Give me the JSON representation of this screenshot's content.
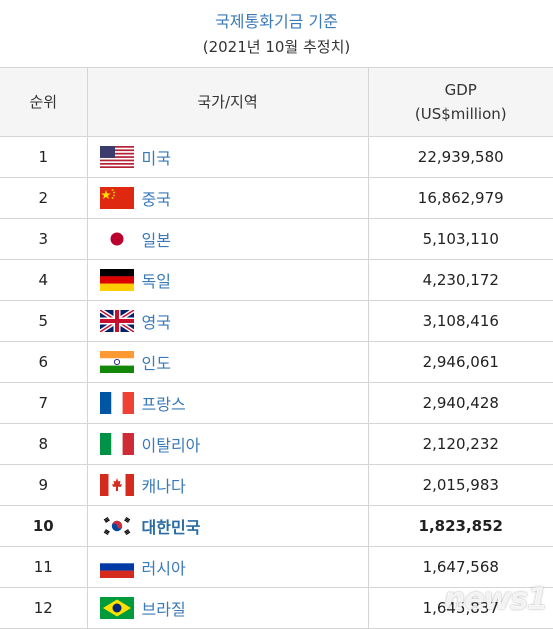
{
  "caption": {
    "source": "국제통화기금 기준",
    "subtitle": "(2021년 10월 추정치)"
  },
  "table": {
    "headers": {
      "rank": "순위",
      "country": "국가/지역",
      "gdp_line1": "GDP",
      "gdp_line2": "(US$million)"
    },
    "rows": [
      {
        "rank": "1",
        "country": "미국",
        "gdp": "22,939,580",
        "flag": "us-flag-icon"
      },
      {
        "rank": "2",
        "country": "중국",
        "gdp": "16,862,979",
        "flag": "china-flag-icon"
      },
      {
        "rank": "3",
        "country": "일본",
        "gdp": "5,103,110",
        "flag": "japan-flag-icon"
      },
      {
        "rank": "4",
        "country": "독일",
        "gdp": "4,230,172",
        "flag": "germany-flag-icon"
      },
      {
        "rank": "5",
        "country": "영국",
        "gdp": "3,108,416",
        "flag": "uk-flag-icon"
      },
      {
        "rank": "6",
        "country": "인도",
        "gdp": "2,946,061",
        "flag": "india-flag-icon"
      },
      {
        "rank": "7",
        "country": "프랑스",
        "gdp": "2,940,428",
        "flag": "france-flag-icon"
      },
      {
        "rank": "8",
        "country": "이탈리아",
        "gdp": "2,120,232",
        "flag": "italy-flag-icon"
      },
      {
        "rank": "9",
        "country": "캐나다",
        "gdp": "2,015,983",
        "flag": "canada-flag-icon"
      },
      {
        "rank": "10",
        "country": "대한민국",
        "gdp": "1,823,852",
        "flag": "korea-flag-icon",
        "highlight": true
      },
      {
        "rank": "11",
        "country": "러시아",
        "gdp": "1,647,568",
        "flag": "russia-flag-icon"
      },
      {
        "rank": "12",
        "country": "브라질",
        "gdp": "1,645,837",
        "flag": "brazil-flag-icon"
      }
    ]
  },
  "watermark": "news1",
  "colors": {
    "link": "#3a7ab8",
    "header_bg": "#f5f5f5",
    "border": "#d4d4d4"
  }
}
